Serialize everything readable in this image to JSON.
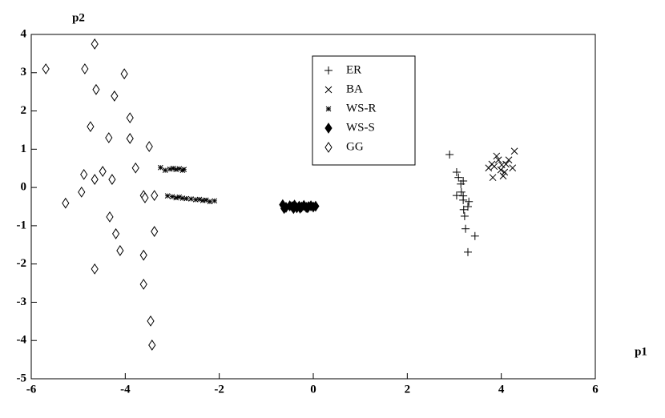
{
  "chart_data": {
    "type": "scatter",
    "xlabel": "p1",
    "ylabel": "p2",
    "xlim": [
      -6,
      6
    ],
    "ylim": [
      -5,
      4
    ],
    "xticks": [
      -6,
      -4,
      -2,
      0,
      2,
      4,
      6
    ],
    "yticks": [
      -5,
      -4,
      -3,
      -2,
      -1,
      0,
      1,
      2,
      3,
      4
    ],
    "legend": "upper center",
    "series": [
      {
        "name": "ER",
        "color": "#000000",
        "marker": "plus",
        "x": [
          2.9,
          3.05,
          3.09,
          3.14,
          3.19,
          3.15,
          3.05,
          3.19,
          3.29,
          3.2,
          3.22,
          3.24,
          3.44,
          3.29,
          3.19,
          3.31
        ],
        "values": [
          0.86,
          0.4,
          0.26,
          0.09,
          0.17,
          -0.12,
          -0.21,
          -0.33,
          -0.5,
          -0.58,
          -0.75,
          -1.08,
          -1.27,
          -1.69,
          -0.22,
          -0.37
        ]
      },
      {
        "name": "BA",
        "color": "#000000",
        "marker": "cross",
        "x": [
          4.28,
          3.85,
          3.82,
          4.07,
          3.94,
          4.1,
          3.8,
          3.99,
          4.04,
          4.16,
          3.73,
          3.9,
          4.01,
          4.24
        ],
        "values": [
          0.95,
          0.55,
          0.26,
          0.4,
          0.72,
          0.61,
          0.61,
          0.46,
          0.3,
          0.72,
          0.51,
          0.82,
          0.59,
          0.51
        ]
      },
      {
        "name": "WS-R",
        "color": "#000000",
        "marker": "star",
        "x": [
          -3.25,
          -3.15,
          -3.05,
          -2.98,
          -2.92,
          -2.85,
          -2.78,
          -2.75,
          -3.1,
          -3.0,
          -2.92,
          -2.85,
          -2.78,
          -2.7,
          -2.6,
          -2.5,
          -2.42,
          -2.35,
          -2.28,
          -2.2,
          -2.1
        ],
        "values": [
          0.52,
          0.45,
          0.48,
          0.5,
          0.47,
          0.49,
          0.45,
          0.47,
          -0.22,
          -0.24,
          -0.27,
          -0.25,
          -0.28,
          -0.29,
          -0.3,
          -0.32,
          -0.31,
          -0.34,
          -0.33,
          -0.37,
          -0.35
        ]
      },
      {
        "name": "WS-S",
        "color": "#000000",
        "marker": "diamond-filled",
        "x": [
          -0.65,
          -0.58,
          -0.5,
          -0.45,
          -0.4,
          -0.35,
          -0.3,
          -0.25,
          -0.2,
          -0.15,
          -0.1,
          -0.05,
          0.0,
          0.05,
          -0.62,
          -0.42,
          -0.28,
          -0.12
        ],
        "values": [
          -0.45,
          -0.52,
          -0.48,
          -0.5,
          -0.46,
          -0.53,
          -0.49,
          -0.51,
          -0.47,
          -0.52,
          -0.5,
          -0.48,
          -0.51,
          -0.49,
          -0.55,
          -0.55,
          -0.54,
          -0.53
        ]
      },
      {
        "name": "GG",
        "color": "#000000",
        "marker": "diamond-open",
        "x": [
          -5.69,
          -4.65,
          -4.86,
          -4.62,
          -4.02,
          -4.23,
          -3.9,
          -4.74,
          -3.9,
          -4.35,
          -3.49,
          -3.78,
          -4.88,
          -4.48,
          -4.28,
          -4.65,
          -4.93,
          -3.61,
          -3.58,
          -3.38,
          -5.27,
          -4.33,
          -4.2,
          -3.38,
          -4.11,
          -3.61,
          -4.65,
          -3.61,
          -3.46,
          -3.43
        ],
        "values": [
          3.1,
          3.75,
          3.1,
          2.56,
          2.97,
          2.39,
          1.82,
          1.59,
          1.28,
          1.3,
          1.07,
          0.51,
          0.34,
          0.42,
          0.21,
          0.21,
          -0.12,
          -0.21,
          -0.27,
          -0.21,
          -0.41,
          -0.77,
          -1.21,
          -1.15,
          -1.65,
          -1.77,
          -2.13,
          -2.53,
          -3.49,
          -4.12
        ]
      }
    ]
  }
}
